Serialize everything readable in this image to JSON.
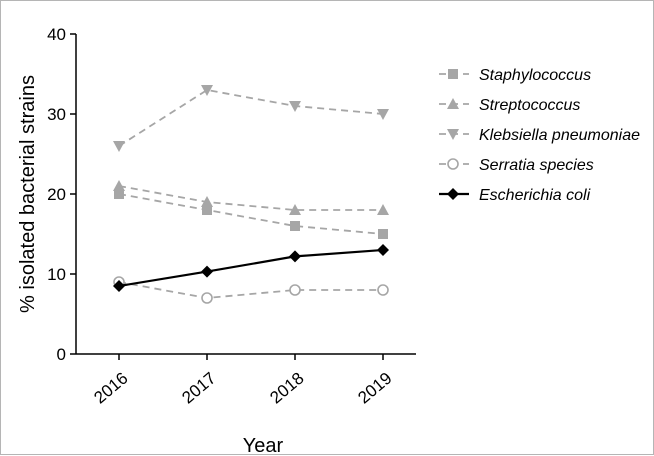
{
  "chart_data": {
    "type": "line",
    "title": "",
    "xlabel": "Year",
    "ylabel": "% isolated bacterial strains",
    "categories": [
      "2016",
      "2017",
      "2018",
      "2019"
    ],
    "ylim": [
      0,
      40
    ],
    "yticks": [
      "0",
      "10",
      "20",
      "30",
      "40"
    ],
    "grid": false,
    "legend_position": "right",
    "series": [
      {
        "name": "Staphylococcus",
        "values": [
          20,
          18,
          16,
          15
        ],
        "color": "#a6a6a6",
        "marker": "square",
        "dashed": true
      },
      {
        "name": "Streptococcus",
        "values": [
          21,
          19,
          18,
          18
        ],
        "color": "#a6a6a6",
        "marker": "triangle-up",
        "dashed": true
      },
      {
        "name": "Klebsiella pneumoniae",
        "values": [
          26,
          33,
          31,
          30
        ],
        "color": "#a6a6a6",
        "marker": "triangle-down",
        "dashed": true
      },
      {
        "name": "Serratia species",
        "values": [
          9,
          7,
          8,
          8
        ],
        "color": "#a6a6a6",
        "marker": "circle-open",
        "dashed": true
      },
      {
        "name": "Escherichia coli",
        "values": [
          8.5,
          10.3,
          12.2,
          13
        ],
        "color": "#000000",
        "marker": "diamond",
        "dashed": false
      }
    ]
  }
}
